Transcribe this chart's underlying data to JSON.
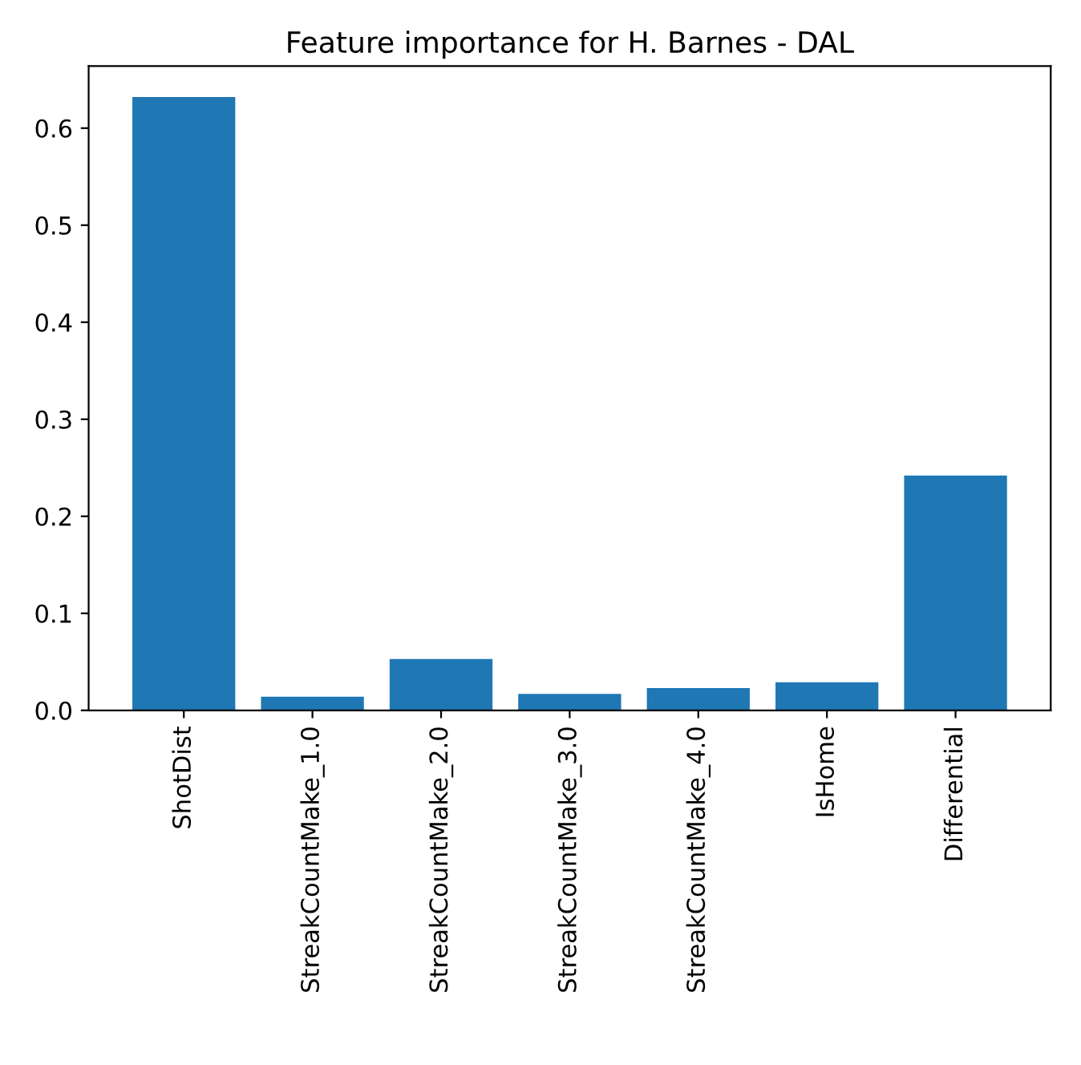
{
  "chart_data": {
    "type": "bar",
    "title": "Feature importance for H. Barnes - DAL",
    "categories": [
      "ShotDist",
      "StreakCountMake_1.0",
      "StreakCountMake_2.0",
      "StreakCountMake_3.0",
      "StreakCountMake_4.0",
      "IsHome",
      "Differential"
    ],
    "values": [
      0.632,
      0.014,
      0.053,
      0.017,
      0.023,
      0.029,
      0.242
    ],
    "color": "#1f77b4",
    "ylim": [
      0,
      0.664
    ],
    "yticks": [
      {
        "value": 0,
        "label": "0.0"
      },
      0.1,
      0.2,
      0.3,
      0.4,
      0.5,
      0.6
    ],
    "grid": false
  }
}
